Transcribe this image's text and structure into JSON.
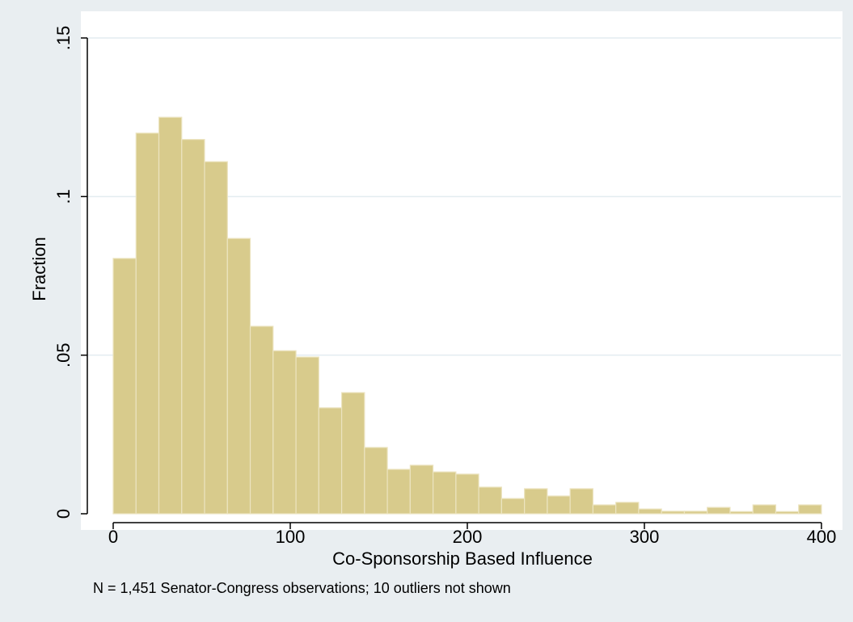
{
  "chart_data": {
    "type": "histogram",
    "x_label": "Co-Sponsorship Based Influence",
    "y_label": "Fraction",
    "note": "N = 1,451 Senator-Congress observations; 10 outliers not shown",
    "bins": [
      0,
      12.9,
      25.81,
      38.71,
      51.61,
      64.52,
      77.42,
      90.32,
      103.23,
      116.13,
      129.03,
      141.94,
      154.84,
      167.74,
      180.65,
      193.55,
      206.45,
      219.35,
      232.26,
      245.16,
      258.06,
      270.97,
      283.87,
      296.77,
      309.68,
      322.58,
      335.48,
      348.39,
      361.29,
      374.19,
      387.1,
      400
    ],
    "values": [
      0.0805,
      0.12,
      0.125,
      0.118,
      0.111,
      0.0868,
      0.0591,
      0.0514,
      0.0494,
      0.0334,
      0.0382,
      0.0209,
      0.014,
      0.0153,
      0.0132,
      0.0125,
      0.0084,
      0.0048,
      0.0079,
      0.0056,
      0.0079,
      0.0028,
      0.0036,
      0.0015,
      0.0008,
      0.0008,
      0.002,
      0.0007,
      0.0028,
      0.0007,
      0.0028
    ],
    "color": "#d8cb8c",
    "xlim": [
      0,
      400
    ],
    "xticks": [
      0,
      100,
      200,
      300,
      400
    ],
    "ylim": [
      0,
      0.15
    ],
    "yticks": [
      0,
      {
        "value": 0.05,
        "label": ".05"
      },
      {
        "value": 0.1,
        "label": ".1"
      },
      {
        "value": 0.15,
        "label": ".15"
      }
    ],
    "grid": true
  }
}
